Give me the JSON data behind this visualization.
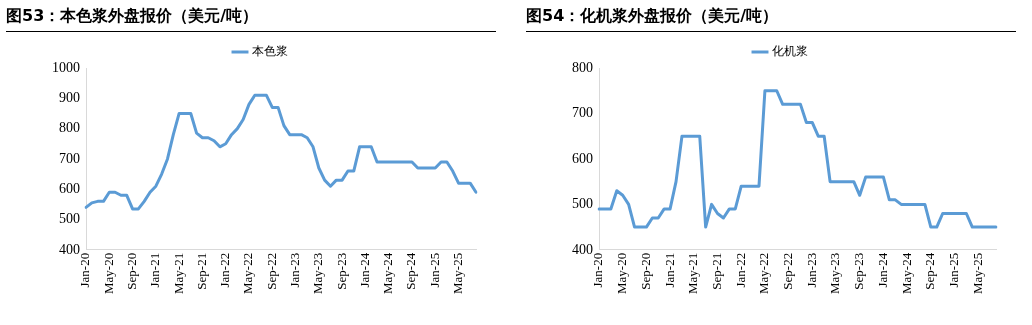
{
  "chart_data": [
    {
      "type": "line",
      "title": "图53：本色浆外盘报价（美元/吨）",
      "categories": [
        "Jan-20",
        null,
        null,
        null,
        "May-20",
        null,
        null,
        null,
        "Sep-20",
        null,
        null,
        null,
        "Jan-21",
        null,
        null,
        null,
        "May-21",
        null,
        null,
        null,
        "Sep-21",
        null,
        null,
        null,
        "Jan-22",
        null,
        null,
        null,
        "May-22",
        null,
        null,
        null,
        "Sep-22",
        null,
        null,
        null,
        "Jan-23",
        null,
        null,
        null,
        "May-23",
        null,
        null,
        null,
        "Sep-23",
        null,
        null,
        null,
        "Jan-24",
        null,
        null,
        null,
        "May-24",
        null,
        null,
        null,
        "Sep-24",
        null,
        null,
        null,
        "Jan-25",
        null,
        null,
        null,
        "May-25",
        null,
        null,
        null
      ],
      "series": [
        {
          "name": "本色浆",
          "color": "#5b9bd5",
          "values": [
            540,
            555,
            560,
            560,
            590,
            590,
            580,
            580,
            535,
            535,
            560,
            590,
            610,
            650,
            700,
            780,
            850,
            850,
            850,
            785,
            770,
            770,
            760,
            740,
            750,
            780,
            800,
            830,
            880,
            910,
            910,
            910,
            870,
            870,
            810,
            780,
            780,
            780,
            770,
            740,
            670,
            630,
            610,
            630,
            630,
            660,
            660,
            740,
            740,
            740,
            690,
            690,
            690,
            690,
            690,
            690,
            690,
            670,
            670,
            670,
            670,
            690,
            690,
            660,
            620,
            620,
            620,
            590
          ]
        }
      ],
      "ylim": [
        400,
        1000
      ],
      "yticks": [
        400,
        500,
        600,
        700,
        800,
        900,
        1000
      ],
      "grid": false,
      "legend": "top",
      "marker": "none",
      "line_style": "solid"
    },
    {
      "type": "line",
      "title": "图54：化机浆外盘报价（美元/吨）",
      "categories": [
        "Jan-20",
        null,
        null,
        null,
        "May-20",
        null,
        null,
        null,
        "Sep-20",
        null,
        null,
        null,
        "Jan-21",
        null,
        null,
        null,
        "May-21",
        null,
        null,
        null,
        "Sep-21",
        null,
        null,
        null,
        "Jan-22",
        null,
        null,
        null,
        "May-22",
        null,
        null,
        null,
        "Sep-22",
        null,
        null,
        null,
        "Jan-23",
        null,
        null,
        null,
        "May-23",
        null,
        null,
        null,
        "Sep-23",
        null,
        null,
        null,
        "Jan-24",
        null,
        null,
        null,
        "May-24",
        null,
        null,
        null,
        "Sep-24",
        null,
        null,
        null,
        "Jan-25",
        null,
        null,
        null,
        "May-25",
        null,
        null,
        null
      ],
      "series": [
        {
          "name": "化机浆",
          "color": "#5b9bd5",
          "values": [
            490,
            490,
            490,
            530,
            520,
            500,
            450,
            450,
            450,
            470,
            470,
            490,
            490,
            550,
            650,
            650,
            650,
            650,
            450,
            500,
            480,
            470,
            490,
            490,
            540,
            540,
            540,
            540,
            750,
            750,
            750,
            720,
            720,
            720,
            720,
            680,
            680,
            650,
            650,
            550,
            550,
            550,
            550,
            550,
            520,
            560,
            560,
            560,
            560,
            510,
            510,
            500,
            500,
            500,
            500,
            500,
            450,
            450,
            480,
            480,
            480,
            480,
            480,
            450,
            450,
            450,
            450,
            450
          ]
        }
      ],
      "ylim": [
        400,
        800
      ],
      "yticks": [
        400,
        500,
        600,
        700,
        800
      ],
      "grid": false,
      "legend": "top",
      "marker": "none",
      "line_style": "solid"
    }
  ]
}
